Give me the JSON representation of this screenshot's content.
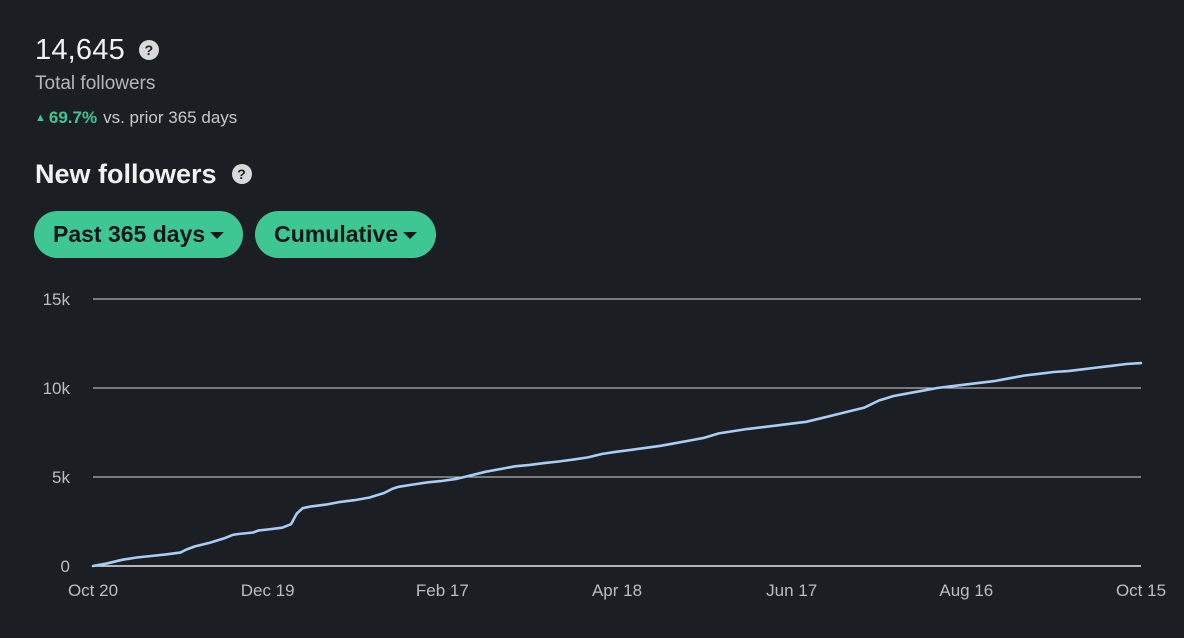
{
  "summary": {
    "total_value": "14,645",
    "total_label": "Total followers",
    "change_value": "69.7%",
    "change_text": "vs. prior 365 days",
    "up_icon": "▲",
    "help_icon": "?"
  },
  "section": {
    "title": "New followers",
    "help_icon": "?"
  },
  "filters": {
    "range_label": "Past 365 days",
    "mode_label": "Cumulative"
  },
  "colors": {
    "accent": "#3ec793",
    "line": "#a9cdf5",
    "grid": "#d6d6d6",
    "background": "#1b1f23"
  },
  "chart_data": {
    "type": "line",
    "title": "New followers",
    "xlabel": "",
    "ylabel": "",
    "ylim": [
      0,
      15000
    ],
    "yticks": [
      0,
      5000,
      10000,
      15000
    ],
    "ytick_labels": [
      "0",
      "5k",
      "10k",
      "15k"
    ],
    "xlim": [
      0,
      360
    ],
    "xticks": [
      0,
      60,
      120,
      180,
      240,
      300,
      360
    ],
    "xtick_labels": [
      "Oct 20",
      "Dec 19",
      "Feb 17",
      "Apr 18",
      "Jun 17",
      "Aug 16",
      "Oct 15"
    ],
    "grid": true,
    "series": [
      {
        "name": "Cumulative new followers",
        "x": [
          0,
          5,
          10,
          15,
          20,
          25,
          30,
          32,
          35,
          40,
          45,
          48,
          50,
          55,
          57,
          60,
          65,
          68,
          70,
          72,
          75,
          80,
          85,
          90,
          95,
          100,
          103,
          105,
          110,
          115,
          120,
          125,
          130,
          135,
          140,
          145,
          150,
          155,
          160,
          165,
          170,
          175,
          180,
          185,
          190,
          195,
          200,
          205,
          210,
          215,
          220,
          225,
          230,
          235,
          240,
          245,
          250,
          255,
          260,
          265,
          270,
          275,
          280,
          285,
          290,
          295,
          300,
          305,
          310,
          315,
          320,
          325,
          330,
          335,
          340,
          345,
          350,
          355,
          360
        ],
        "values": [
          0,
          150,
          350,
          480,
          560,
          650,
          750,
          920,
          1100,
          1300,
          1550,
          1750,
          1800,
          1880,
          2000,
          2050,
          2150,
          2350,
          2950,
          3250,
          3350,
          3450,
          3600,
          3700,
          3850,
          4100,
          4350,
          4450,
          4580,
          4700,
          4780,
          4900,
          5100,
          5300,
          5450,
          5600,
          5680,
          5780,
          5870,
          5980,
          6100,
          6300,
          6420,
          6530,
          6640,
          6750,
          6900,
          7050,
          7200,
          7450,
          7580,
          7700,
          7800,
          7900,
          8000,
          8100,
          8300,
          8500,
          8700,
          8900,
          9300,
          9550,
          9700,
          9850,
          10000,
          10100,
          10200,
          10300,
          10400,
          10550,
          10700,
          10800,
          10900,
          10950,
          11050,
          11150,
          11250,
          11350,
          11400
        ]
      }
    ]
  }
}
